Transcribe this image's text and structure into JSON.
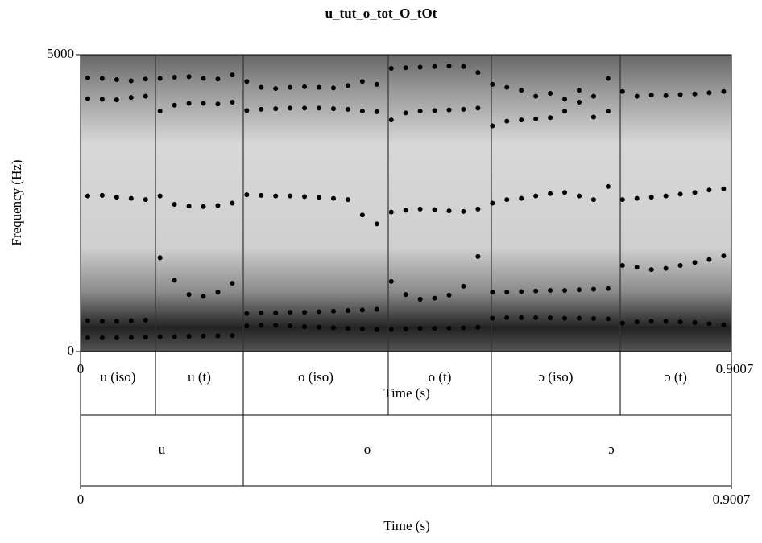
{
  "chart_data": {
    "type": "spectrogram",
    "title": "u_tut_o_tot_O_tOt",
    "x_label": "Time (s)",
    "y_label": "Frequency (Hz)",
    "xlim": [
      0,
      0.9007
    ],
    "xticks": [
      0,
      0.9007
    ],
    "ylim": [
      0,
      5000
    ],
    "yticks": [
      0,
      5000
    ],
    "x": [
      0.01,
      0.03,
      0.05,
      0.07,
      0.09,
      0.11,
      0.13,
      0.15,
      0.17,
      0.19,
      0.21,
      0.23,
      0.25,
      0.27,
      0.29,
      0.31,
      0.33,
      0.35,
      0.37,
      0.39,
      0.41,
      0.43,
      0.45,
      0.47,
      0.49,
      0.51,
      0.53,
      0.55,
      0.57,
      0.59,
      0.61,
      0.63,
      0.65,
      0.67,
      0.69,
      0.71,
      0.73,
      0.75,
      0.77,
      0.79,
      0.81,
      0.83,
      0.85,
      0.87,
      0.89
    ],
    "series": [
      {
        "name": "F1",
        "color": "#000000",
        "values": [
          230,
          230,
          230,
          235,
          240,
          250,
          250,
          255,
          260,
          265,
          270,
          430,
          440,
          440,
          430,
          420,
          410,
          400,
          390,
          380,
          370,
          370,
          380,
          390,
          390,
          395,
          400,
          410,
          560,
          570,
          570,
          570,
          565,
          560,
          560,
          555,
          550,
          480,
          500,
          510,
          510,
          500,
          490,
          470,
          450
        ]
      },
      {
        "name": "F2",
        "color": "#000000",
        "values": [
          520,
          510,
          510,
          520,
          530,
          1580,
          1200,
          960,
          930,
          1000,
          1150,
          640,
          650,
          650,
          660,
          660,
          670,
          680,
          690,
          700,
          710,
          1180,
          960,
          880,
          900,
          950,
          1100,
          1600,
          1000,
          1000,
          1010,
          1020,
          1030,
          1030,
          1040,
          1050,
          1060,
          1450,
          1420,
          1380,
          1400,
          1450,
          1500,
          1550,
          1610
        ]
      },
      {
        "name": "F3",
        "color": "#000000",
        "values": [
          2620,
          2630,
          2600,
          2580,
          2560,
          2620,
          2480,
          2450,
          2440,
          2460,
          2500,
          2640,
          2630,
          2620,
          2620,
          2610,
          2600,
          2580,
          2560,
          2300,
          2150,
          2350,
          2380,
          2400,
          2390,
          2370,
          2360,
          2400,
          2500,
          2560,
          2580,
          2620,
          2660,
          2680,
          2620,
          2560,
          2780,
          2560,
          2580,
          2600,
          2620,
          2650,
          2680,
          2720,
          2740
        ]
      },
      {
        "name": "F4",
        "color": "#000000",
        "values": [
          4260,
          4250,
          4240,
          4280,
          4300,
          4050,
          4150,
          4180,
          4180,
          4170,
          4200,
          4060,
          4080,
          4090,
          4100,
          4100,
          4100,
          4090,
          4080,
          4050,
          4040,
          3900,
          4020,
          4050,
          4060,
          4070,
          4080,
          4100,
          3800,
          3880,
          3900,
          3920,
          3940,
          4050,
          4200,
          3950,
          4050,
          null,
          null,
          null,
          null,
          null,
          null,
          null,
          null
        ]
      },
      {
        "name": "F5",
        "color": "#000000",
        "values": [
          4610,
          4600,
          4580,
          4560,
          4590,
          4600,
          4620,
          4630,
          4600,
          4590,
          4660,
          4550,
          4450,
          4430,
          4450,
          4460,
          4450,
          4440,
          4480,
          4550,
          4500,
          4770,
          4780,
          4790,
          4800,
          4810,
          4800,
          4700,
          4500,
          4450,
          4400,
          4300,
          4350,
          4250,
          4400,
          4300,
          4600,
          4380,
          4300,
          4320,
          4310,
          4330,
          4340,
          4360,
          4380
        ]
      }
    ],
    "tiers": [
      {
        "intervals": [
          {
            "label": "u (iso)",
            "start": 0,
            "end": 0.1037
          },
          {
            "label": "u (t)",
            "start": 0.1037,
            "end": 0.2252
          },
          {
            "label": "o (iso)",
            "start": 0.2252,
            "end": 0.4258
          },
          {
            "label": "o (t)",
            "start": 0.4258,
            "end": 0.5685
          },
          {
            "label": "ɔ (iso)",
            "start": 0.5685,
            "end": 0.7469
          },
          {
            "label": "ɔ (t)",
            "start": 0.7469,
            "end": 0.9007
          }
        ]
      },
      {
        "intervals": [
          {
            "label": "u",
            "start": 0,
            "end": 0.2252
          },
          {
            "label": "o",
            "start": 0.2252,
            "end": 0.5685
          },
          {
            "label": "ɔ",
            "start": 0.5685,
            "end": 0.9007
          }
        ]
      }
    ]
  }
}
